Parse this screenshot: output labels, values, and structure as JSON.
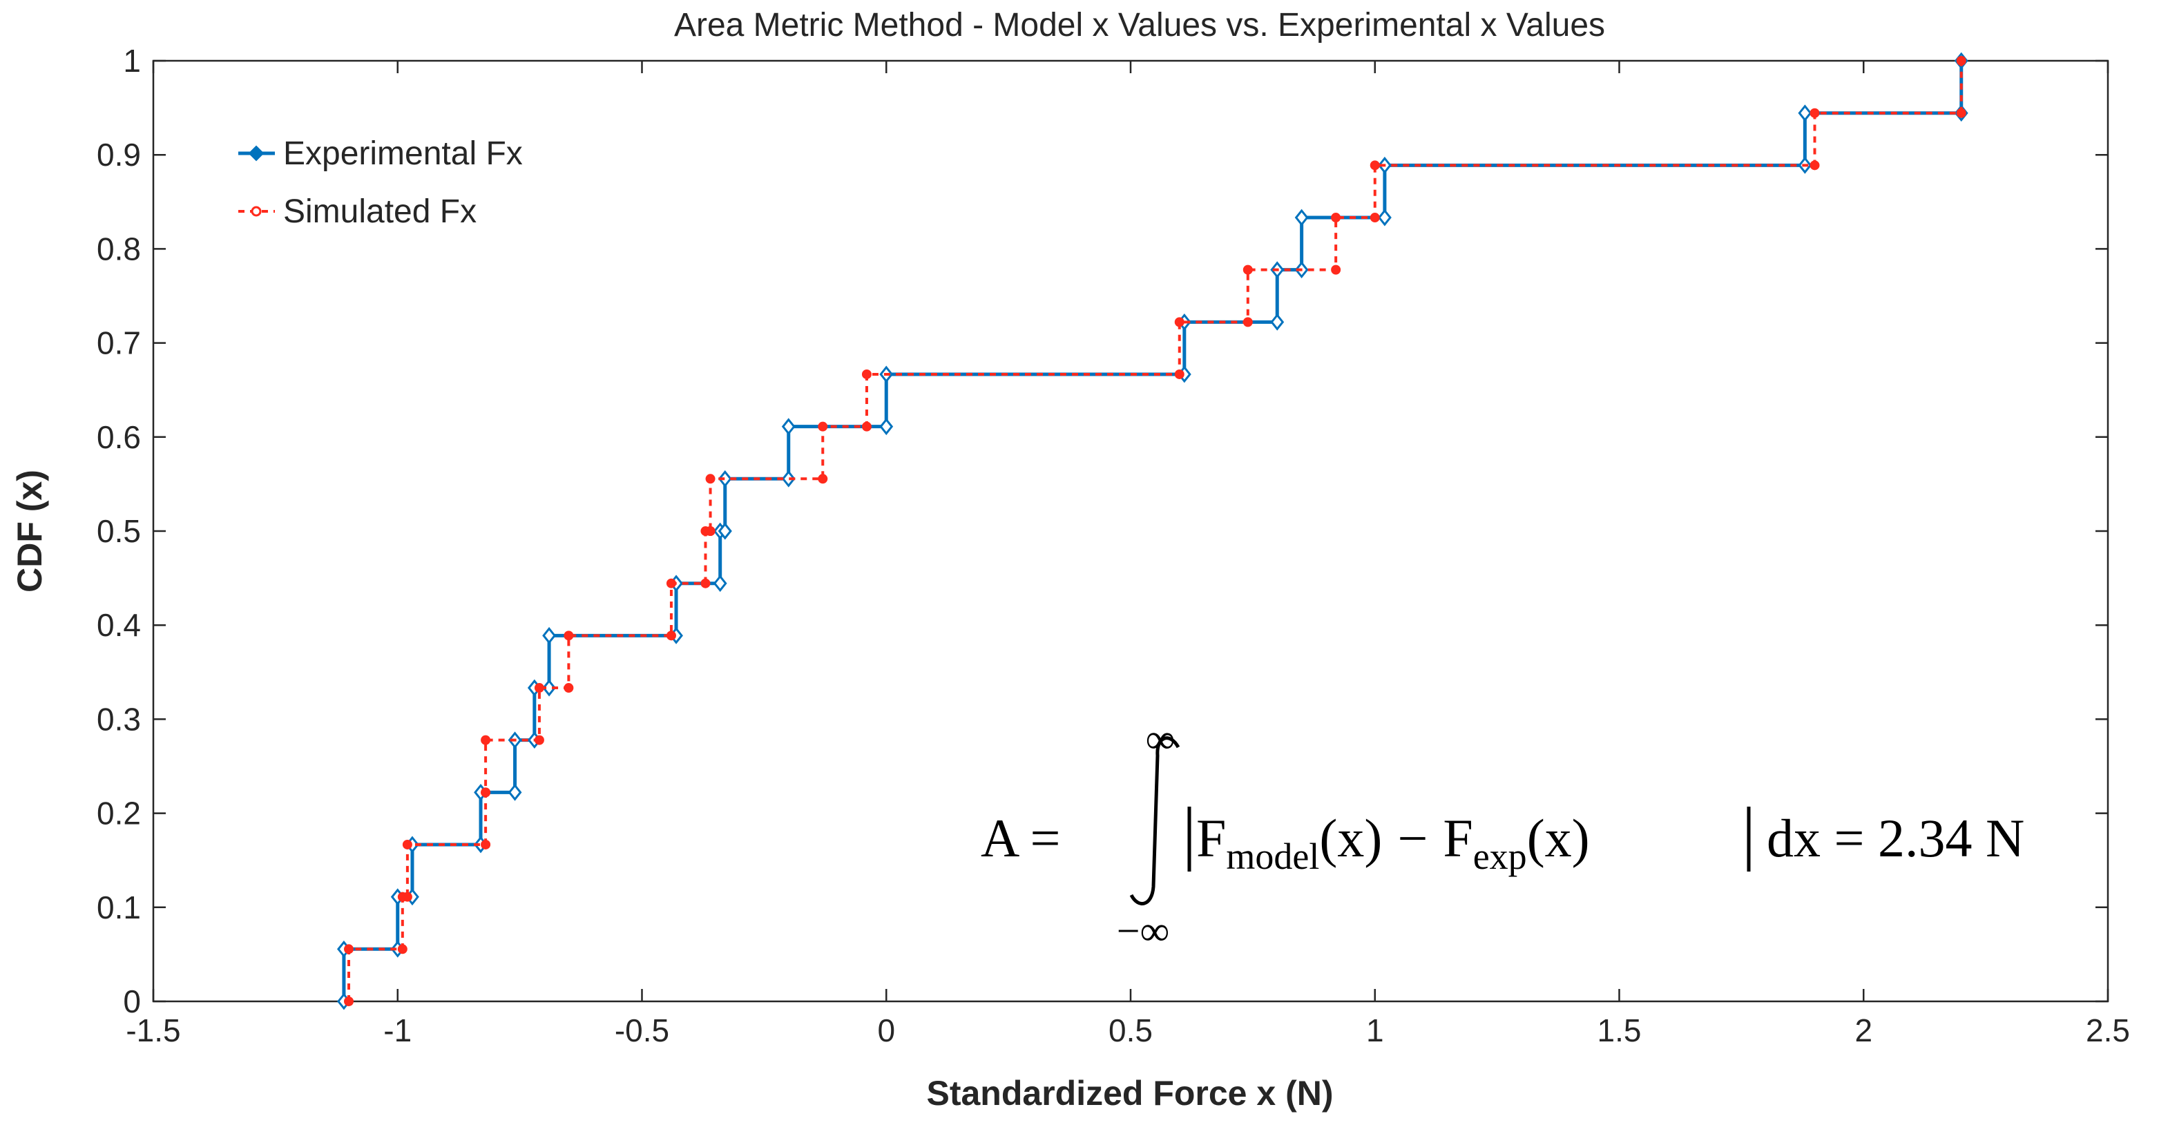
{
  "chart_data": {
    "type": "line",
    "step": true,
    "title": "Area Metric Method - Model x Values vs. Experimental x Values",
    "xlabel": "Standardized Force x (N)",
    "ylabel": "CDF (x)",
    "xlim": [
      -1.5,
      2.5
    ],
    "ylim": [
      0,
      1
    ],
    "xticks": [
      -1.5,
      -1,
      -0.5,
      0,
      0.5,
      1,
      1.5,
      2,
      2.5
    ],
    "xtick_labels": [
      "-1.5",
      "-1",
      "-0.5",
      "0",
      "0.5",
      "1",
      "1.5",
      "2",
      "2.5"
    ],
    "yticks": [
      0,
      0.1,
      0.2,
      0.3,
      0.4,
      0.5,
      0.6,
      0.7,
      0.8,
      0.9,
      1
    ],
    "ytick_labels": [
      "0",
      "0.1",
      "0.2",
      "0.3",
      "0.4",
      "0.5",
      "0.6",
      "0.7",
      "0.8",
      "0.9",
      "1"
    ],
    "grid": false,
    "legend_position": "top-left",
    "series": [
      {
        "name": "Experimental Fx",
        "color": "#0072BD",
        "line_style": "solid",
        "marker": "diamond",
        "x": [
          -1.11,
          -1.0,
          -0.97,
          -0.83,
          -0.76,
          -0.72,
          -0.69,
          -0.43,
          -0.34,
          -0.33,
          -0.33,
          -0.2,
          0.0,
          0.61,
          0.8,
          0.85,
          1.02,
          1.88,
          2.2
        ],
        "values": [
          0.0556,
          0.1111,
          0.1667,
          0.2222,
          0.2778,
          0.3333,
          0.3889,
          0.4444,
          0.5,
          0.5,
          0.5556,
          0.6111,
          0.6667,
          0.7222,
          0.7778,
          0.8333,
          0.8889,
          0.9444,
          1.0
        ]
      },
      {
        "name": "Simulated Fx",
        "color": "#FF2A1C",
        "line_style": "dashed",
        "marker": "circle",
        "x": [
          -1.1,
          -0.99,
          -0.98,
          -0.82,
          -0.82,
          -0.71,
          -0.65,
          -0.44,
          -0.37,
          -0.36,
          -0.36,
          -0.13,
          -0.04,
          0.6,
          0.74,
          0.92,
          1.0,
          1.9,
          2.2
        ],
        "values": [
          0.0556,
          0.1111,
          0.1667,
          0.2222,
          0.2778,
          0.3333,
          0.3889,
          0.4444,
          0.5,
          0.5,
          0.5556,
          0.6111,
          0.6667,
          0.7222,
          0.7778,
          0.8333,
          0.8889,
          0.9444,
          1.0
        ]
      }
    ],
    "annotations": [
      {
        "label": "area-metric-equation",
        "parts": {
          "lhs": "A =",
          "upper_limit": "∞",
          "lower_limit": "−∞",
          "f": "F",
          "model_sub": "model",
          "exp_sub": "exp",
          "arg": "(x)",
          "minus": "−",
          "tail": "dx = 2.34 N"
        }
      }
    ]
  }
}
